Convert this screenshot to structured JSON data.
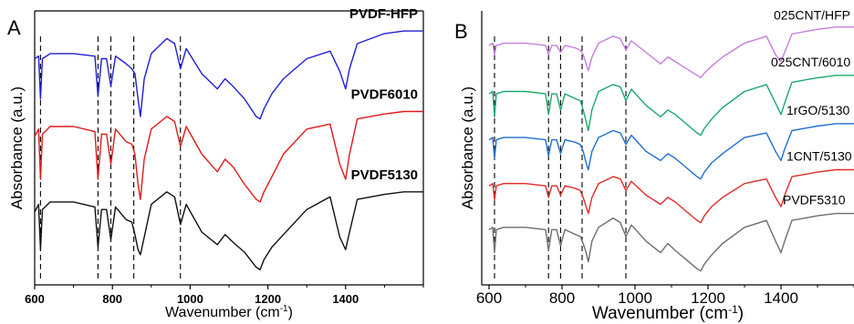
{
  "chart_data": [
    {
      "panel_label": "A",
      "type": "line",
      "xlabel": "Wavenumber (cm",
      "xlabel_sup": "-1",
      "xlabel_close": ")",
      "ylabel": "Absorbance (a.u.)",
      "xlim": [
        600,
        1600
      ],
      "xticks": [
        600,
        800,
        1000,
        1200,
        1400
      ],
      "grid": false,
      "dashed_lines_x": [
        615,
        763,
        796,
        855,
        975
      ],
      "series": [
        {
          "name": "PVDF-HFP",
          "color": "#1f1fd6",
          "x": [
            600,
            610,
            615,
            620,
            640,
            700,
            755,
            763,
            772,
            785,
            796,
            808,
            835,
            850,
            858,
            866,
            872,
            882,
            900,
            940,
            960,
            975,
            990,
            1030,
            1070,
            1090,
            1110,
            1140,
            1170,
            1180,
            1190,
            1210,
            1240,
            1300,
            1360,
            1385,
            1400,
            1410,
            1430,
            1500,
            1550,
            1600
          ],
          "y": [
            0.78,
            0.79,
            0.62,
            0.78,
            0.8,
            0.8,
            0.79,
            0.63,
            0.78,
            0.78,
            0.67,
            0.79,
            0.76,
            0.74,
            0.72,
            0.62,
            0.55,
            0.7,
            0.8,
            0.86,
            0.84,
            0.74,
            0.82,
            0.72,
            0.66,
            0.7,
            0.67,
            0.62,
            0.55,
            0.54,
            0.58,
            0.64,
            0.7,
            0.78,
            0.81,
            0.73,
            0.66,
            0.74,
            0.84,
            0.88,
            0.89,
            0.89
          ]
        },
        {
          "name": "PVDF6010",
          "color": "#e01a1a",
          "x": [
            600,
            610,
            615,
            620,
            640,
            700,
            755,
            763,
            772,
            785,
            796,
            808,
            835,
            850,
            858,
            866,
            872,
            882,
            900,
            940,
            960,
            975,
            990,
            1030,
            1070,
            1090,
            1110,
            1140,
            1170,
            1180,
            1190,
            1210,
            1240,
            1300,
            1360,
            1385,
            1400,
            1410,
            1430,
            1500,
            1550,
            1600
          ],
          "y": [
            0.47,
            0.5,
            0.3,
            0.48,
            0.51,
            0.51,
            0.49,
            0.3,
            0.48,
            0.48,
            0.36,
            0.5,
            0.45,
            0.44,
            0.4,
            0.28,
            0.22,
            0.38,
            0.5,
            0.55,
            0.53,
            0.43,
            0.51,
            0.4,
            0.33,
            0.38,
            0.35,
            0.28,
            0.22,
            0.21,
            0.25,
            0.31,
            0.4,
            0.5,
            0.52,
            0.36,
            0.3,
            0.4,
            0.54,
            0.56,
            0.57,
            0.57
          ]
        },
        {
          "name": "PVDF5130",
          "color": "#111111",
          "x": [
            600,
            610,
            615,
            620,
            640,
            700,
            755,
            763,
            772,
            785,
            796,
            808,
            835,
            850,
            858,
            866,
            872,
            882,
            900,
            940,
            960,
            975,
            990,
            1030,
            1070,
            1090,
            1110,
            1140,
            1170,
            1180,
            1190,
            1210,
            1240,
            1300,
            1360,
            1385,
            1400,
            1410,
            1430,
            1500,
            1550,
            1600
          ],
          "y": [
            0.17,
            0.2,
            0.02,
            0.18,
            0.21,
            0.21,
            0.19,
            0.03,
            0.18,
            0.18,
            0.06,
            0.19,
            0.14,
            0.13,
            0.08,
            0.02,
            0.0,
            0.07,
            0.2,
            0.25,
            0.23,
            0.12,
            0.2,
            0.09,
            0.04,
            0.08,
            0.05,
            0.01,
            -0.05,
            -0.06,
            -0.02,
            0.03,
            0.08,
            0.18,
            0.23,
            0.07,
            0.02,
            0.09,
            0.22,
            0.24,
            0.25,
            0.25
          ]
        }
      ]
    },
    {
      "panel_label": "B",
      "type": "line",
      "xlabel": "Wavenumber (cm",
      "xlabel_sup": "-1",
      "xlabel_close": ")",
      "ylabel": "Absorbance (a.u.)",
      "xlim": [
        580,
        1600
      ],
      "xticks": [
        600,
        800,
        1000,
        1200,
        1400
      ],
      "grid": false,
      "dashed_lines_x": [
        615,
        763,
        796,
        855,
        975
      ],
      "series": [
        {
          "name": "025CNT/HFP",
          "color": "#c77ee0",
          "x": [
            600,
            610,
            615,
            620,
            640,
            700,
            755,
            763,
            772,
            785,
            796,
            808,
            835,
            850,
            858,
            866,
            872,
            882,
            900,
            940,
            960,
            975,
            990,
            1030,
            1070,
            1090,
            1110,
            1140,
            1170,
            1180,
            1190,
            1210,
            1240,
            1300,
            1360,
            1385,
            1400,
            1410,
            1430,
            1500,
            1550,
            1600
          ],
          "y": [
            0.88,
            0.89,
            0.84,
            0.88,
            0.89,
            0.89,
            0.88,
            0.84,
            0.88,
            0.88,
            0.85,
            0.88,
            0.87,
            0.86,
            0.84,
            0.8,
            0.77,
            0.83,
            0.89,
            0.92,
            0.91,
            0.86,
            0.9,
            0.85,
            0.8,
            0.83,
            0.81,
            0.78,
            0.75,
            0.74,
            0.76,
            0.79,
            0.83,
            0.89,
            0.92,
            0.84,
            0.81,
            0.85,
            0.93,
            0.95,
            0.96,
            0.96
          ]
        },
        {
          "name": "025CNT/6010",
          "color": "#1aa86b",
          "x": [
            600,
            610,
            615,
            620,
            640,
            700,
            755,
            763,
            772,
            785,
            796,
            808,
            835,
            850,
            858,
            866,
            872,
            882,
            900,
            940,
            960,
            975,
            990,
            1030,
            1070,
            1090,
            1110,
            1140,
            1170,
            1180,
            1190,
            1210,
            1240,
            1300,
            1360,
            1385,
            1400,
            1410,
            1430,
            1500,
            1550,
            1600
          ],
          "y": [
            0.67,
            0.68,
            0.57,
            0.67,
            0.68,
            0.68,
            0.67,
            0.58,
            0.67,
            0.67,
            0.6,
            0.67,
            0.65,
            0.64,
            0.6,
            0.55,
            0.51,
            0.6,
            0.68,
            0.71,
            0.7,
            0.64,
            0.69,
            0.62,
            0.57,
            0.6,
            0.58,
            0.54,
            0.5,
            0.49,
            0.52,
            0.56,
            0.61,
            0.68,
            0.71,
            0.63,
            0.58,
            0.63,
            0.72,
            0.74,
            0.75,
            0.75
          ]
        },
        {
          "name": "1rGO/5130",
          "color": "#1f6fd1",
          "x": [
            600,
            610,
            615,
            620,
            640,
            700,
            755,
            763,
            772,
            785,
            796,
            808,
            835,
            850,
            858,
            866,
            872,
            882,
            900,
            940,
            960,
            975,
            990,
            1030,
            1070,
            1090,
            1110,
            1140,
            1170,
            1180,
            1190,
            1210,
            1240,
            1300,
            1360,
            1385,
            1400,
            1410,
            1430,
            1500,
            1550,
            1600
          ],
          "y": [
            0.47,
            0.48,
            0.39,
            0.47,
            0.48,
            0.48,
            0.47,
            0.4,
            0.47,
            0.47,
            0.41,
            0.47,
            0.46,
            0.45,
            0.42,
            0.37,
            0.34,
            0.42,
            0.48,
            0.51,
            0.5,
            0.45,
            0.49,
            0.42,
            0.38,
            0.41,
            0.39,
            0.35,
            0.31,
            0.3,
            0.33,
            0.37,
            0.41,
            0.48,
            0.5,
            0.42,
            0.38,
            0.43,
            0.51,
            0.53,
            0.54,
            0.54
          ]
        },
        {
          "name": "1CNT/5130",
          "color": "#e02a2a",
          "x": [
            600,
            610,
            615,
            620,
            640,
            700,
            755,
            763,
            772,
            785,
            796,
            808,
            835,
            850,
            858,
            866,
            872,
            882,
            900,
            940,
            960,
            975,
            990,
            1030,
            1070,
            1090,
            1110,
            1140,
            1170,
            1180,
            1190,
            1210,
            1240,
            1300,
            1360,
            1385,
            1400,
            1410,
            1430,
            1500,
            1550,
            1600
          ],
          "y": [
            0.27,
            0.28,
            0.21,
            0.27,
            0.28,
            0.28,
            0.27,
            0.22,
            0.27,
            0.27,
            0.23,
            0.27,
            0.26,
            0.25,
            0.22,
            0.18,
            0.15,
            0.22,
            0.28,
            0.31,
            0.3,
            0.25,
            0.29,
            0.23,
            0.19,
            0.22,
            0.2,
            0.16,
            0.12,
            0.11,
            0.14,
            0.18,
            0.22,
            0.28,
            0.3,
            0.22,
            0.18,
            0.23,
            0.31,
            0.33,
            0.34,
            0.34
          ]
        },
        {
          "name": "PVDF5310",
          "color": "#6e6e6e",
          "x": [
            600,
            610,
            615,
            620,
            640,
            700,
            755,
            763,
            772,
            785,
            796,
            808,
            835,
            850,
            858,
            866,
            872,
            882,
            900,
            940,
            960,
            975,
            990,
            1030,
            1070,
            1090,
            1110,
            1140,
            1170,
            1180,
            1190,
            1210,
            1240,
            1300,
            1360,
            1385,
            1400,
            1410,
            1430,
            1500,
            1550,
            1600
          ],
          "y": [
            0.08,
            0.09,
            -0.02,
            0.08,
            0.09,
            0.09,
            0.08,
            -0.01,
            0.08,
            0.08,
            0.01,
            0.08,
            0.06,
            0.05,
            0.02,
            -0.02,
            -0.06,
            0.03,
            0.09,
            0.13,
            0.11,
            0.05,
            0.1,
            0.03,
            -0.02,
            0.02,
            -0.01,
            -0.05,
            -0.09,
            -0.1,
            -0.07,
            -0.03,
            0.02,
            0.09,
            0.12,
            0.03,
            -0.02,
            0.03,
            0.12,
            0.14,
            0.15,
            0.15
          ]
        }
      ]
    }
  ]
}
